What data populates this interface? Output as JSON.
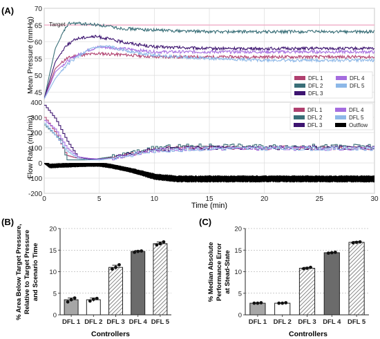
{
  "colors": {
    "DFL 1": "#b0406f",
    "DFL 2": "#3a6f78",
    "DFL 3": "#3d1470",
    "DFL 4": "#a56ddf",
    "DFL 5": "#8db8e8",
    "Outflow": "#000000",
    "target": "#f0a6c2",
    "bar_gray": "#a6a6a6",
    "bar_dark": "#6b6b6b",
    "bar_white": "#ffffff"
  },
  "chart_data": [
    {
      "panel": "(A)",
      "type": "line",
      "subtitle": "top",
      "ylabel": "Mean Pressure (mmHg)",
      "ylim": [
        42,
        70
      ],
      "yticks": [
        45,
        50,
        55,
        60,
        65,
        70
      ],
      "xlim": [
        0,
        30
      ],
      "grid": true,
      "target": {
        "label": "Target",
        "value": 65
      },
      "legend": {
        "position": "bottom-right",
        "entries": [
          "DFL 1",
          "DFL 4",
          "DFL 2",
          "DFL 5",
          "DFL 3"
        ]
      },
      "series": [
        {
          "name": "DFL 1",
          "x": [
            0,
            1,
            2,
            3,
            5,
            8,
            10,
            15,
            20,
            25,
            30
          ],
          "y": [
            43,
            52,
            55,
            56,
            56.5,
            56,
            55.5,
            55.5,
            55.5,
            55.5,
            55.5
          ]
        },
        {
          "name": "DFL 2",
          "x": [
            0,
            1,
            2,
            2.3,
            3,
            5,
            7,
            10,
            15,
            20,
            25,
            30
          ],
          "y": [
            43,
            58,
            64.5,
            65.5,
            65.5,
            65,
            64,
            63.5,
            63,
            63,
            63,
            63
          ]
        },
        {
          "name": "DFL 3",
          "x": [
            0,
            1,
            2,
            3,
            4,
            5,
            7,
            10,
            15,
            20,
            25,
            30
          ],
          "y": [
            43,
            54,
            59,
            61,
            61.5,
            61.5,
            60,
            58.5,
            58,
            58,
            58,
            58
          ]
        },
        {
          "name": "DFL 4",
          "x": [
            0,
            1,
            2,
            3,
            4,
            5,
            7,
            10,
            15,
            20,
            25,
            30
          ],
          "y": [
            43,
            51,
            54,
            56,
            57.5,
            58.5,
            58,
            57,
            57,
            57,
            57,
            57
          ]
        },
        {
          "name": "DFL 5",
          "x": [
            0,
            1,
            2,
            3,
            4,
            5,
            6,
            8,
            10,
            15,
            20,
            25,
            30
          ],
          "y": [
            43,
            49,
            53,
            55.5,
            57.5,
            58.5,
            58.5,
            57,
            56,
            55,
            54.5,
            54.5,
            54.5
          ]
        }
      ]
    },
    {
      "panel": "(A)",
      "type": "line",
      "subtitle": "bottom",
      "ylabel": "Flow Rate (mL/min)",
      "xlabel": "Time (min)",
      "ylim": [
        -200,
        400
      ],
      "yticks": [
        -200,
        -100,
        0,
        100,
        200,
        300,
        400
      ],
      "xlim": [
        0,
        30
      ],
      "xticks": [
        0,
        5,
        10,
        15,
        20,
        25,
        30
      ],
      "grid": true,
      "legend": {
        "position": "top-right",
        "entries": [
          "DFL 1",
          "DFL 4",
          "DFL 2",
          "DFL 5",
          "DFL 3",
          "Outflow"
        ]
      },
      "series": [
        {
          "name": "DFL 1",
          "x": [
            0,
            1,
            2,
            3,
            4,
            5,
            6,
            8,
            10,
            12,
            15,
            20,
            25,
            30
          ],
          "y": [
            300,
            200,
            50,
            30,
            25,
            25,
            35,
            60,
            90,
            100,
            100,
            100,
            100,
            100
          ]
        },
        {
          "name": "DFL 2",
          "x": [
            0,
            1,
            1.5,
            2,
            3,
            4,
            6,
            8,
            10,
            12,
            15,
            20,
            25,
            30
          ],
          "y": [
            250,
            180,
            150,
            20,
            20,
            20,
            40,
            70,
            100,
            110,
            115,
            110,
            110,
            110
          ]
        },
        {
          "name": "DFL 3",
          "x": [
            0,
            1,
            2,
            3,
            4,
            5,
            6,
            8,
            10,
            15,
            20,
            25,
            30
          ],
          "y": [
            380,
            290,
            150,
            40,
            25,
            25,
            30,
            60,
            90,
            100,
            100,
            100,
            100
          ]
        },
        {
          "name": "DFL 4",
          "x": [
            0,
            1,
            2,
            3,
            4,
            5,
            6,
            8,
            10,
            15,
            20,
            25,
            30
          ],
          "y": [
            280,
            220,
            100,
            40,
            30,
            25,
            30,
            60,
            85,
            95,
            95,
            95,
            95
          ]
        },
        {
          "name": "DFL 5",
          "x": [
            0,
            1,
            2,
            3,
            4,
            5,
            6,
            8,
            10,
            15,
            20,
            25,
            30
          ],
          "y": [
            260,
            180,
            80,
            30,
            20,
            20,
            30,
            55,
            80,
            95,
            95,
            95,
            95
          ]
        },
        {
          "name": "Outflow",
          "x": [
            0,
            0.5,
            2,
            4,
            5,
            6,
            8,
            10,
            12,
            15,
            20,
            25,
            30
          ],
          "y": [
            0,
            -30,
            -25,
            -20,
            -20,
            -30,
            -60,
            -100,
            -115,
            -115,
            -115,
            -115,
            -115
          ]
        }
      ]
    },
    {
      "panel": "(B)",
      "type": "bar",
      "categories": [
        "DFL 1",
        "DFL 2",
        "DFL 3",
        "DFL 4",
        "DFL 5"
      ],
      "values": [
        3.5,
        3.5,
        11,
        14.7,
        16.5
      ],
      "errors": [
        0.4,
        0.4,
        0.5,
        0.2,
        0.4
      ],
      "points": [
        [
          3.0,
          3.5,
          3.9
        ],
        [
          3.2,
          3.6,
          3.8
        ],
        [
          10.6,
          11.0,
          11.6
        ],
        [
          14.5,
          14.7,
          14.8
        ],
        [
          16.2,
          16.5,
          16.9
        ]
      ],
      "fills": [
        "gray",
        "white",
        "hatch",
        "dark",
        "hatch"
      ],
      "ylabel": "% Area Below Target Pressure, Relative to Target Pressure and Scenario Time",
      "ylabel_lines": [
        "% Area Below Target Pressure,",
        "Relative to Target Pressure",
        "and Scenario Time"
      ],
      "xlabel": "Controllers",
      "ylim": [
        0,
        20
      ],
      "yticks": [
        0,
        5,
        10,
        15,
        20
      ],
      "grid": true
    },
    {
      "panel": "(C)",
      "type": "bar",
      "categories": [
        "DFL 1",
        "DFL 2",
        "DFL 3",
        "DFL 4",
        "DFL 5"
      ],
      "values": [
        2.7,
        2.7,
        10.8,
        14.4,
        16.8
      ],
      "errors": [
        0.1,
        0.1,
        0.2,
        0.1,
        0.2
      ],
      "points": [
        [
          2.7,
          2.7,
          2.8
        ],
        [
          2.7,
          2.7,
          2.8
        ],
        [
          10.7,
          10.8,
          11.0
        ],
        [
          14.3,
          14.4,
          14.5
        ],
        [
          16.7,
          16.8,
          16.9
        ]
      ],
      "fills": [
        "gray",
        "white",
        "hatch",
        "dark",
        "hatch"
      ],
      "ylabel": "% Median Absolute Performance Error at Stead-State",
      "ylabel_lines": [
        "% Median Absolute",
        "Performance Error",
        "at Stead-State"
      ],
      "xlabel": "Controllers",
      "ylim": [
        0,
        20
      ],
      "yticks": [
        0,
        5,
        10,
        15,
        20
      ],
      "grid": true
    }
  ]
}
